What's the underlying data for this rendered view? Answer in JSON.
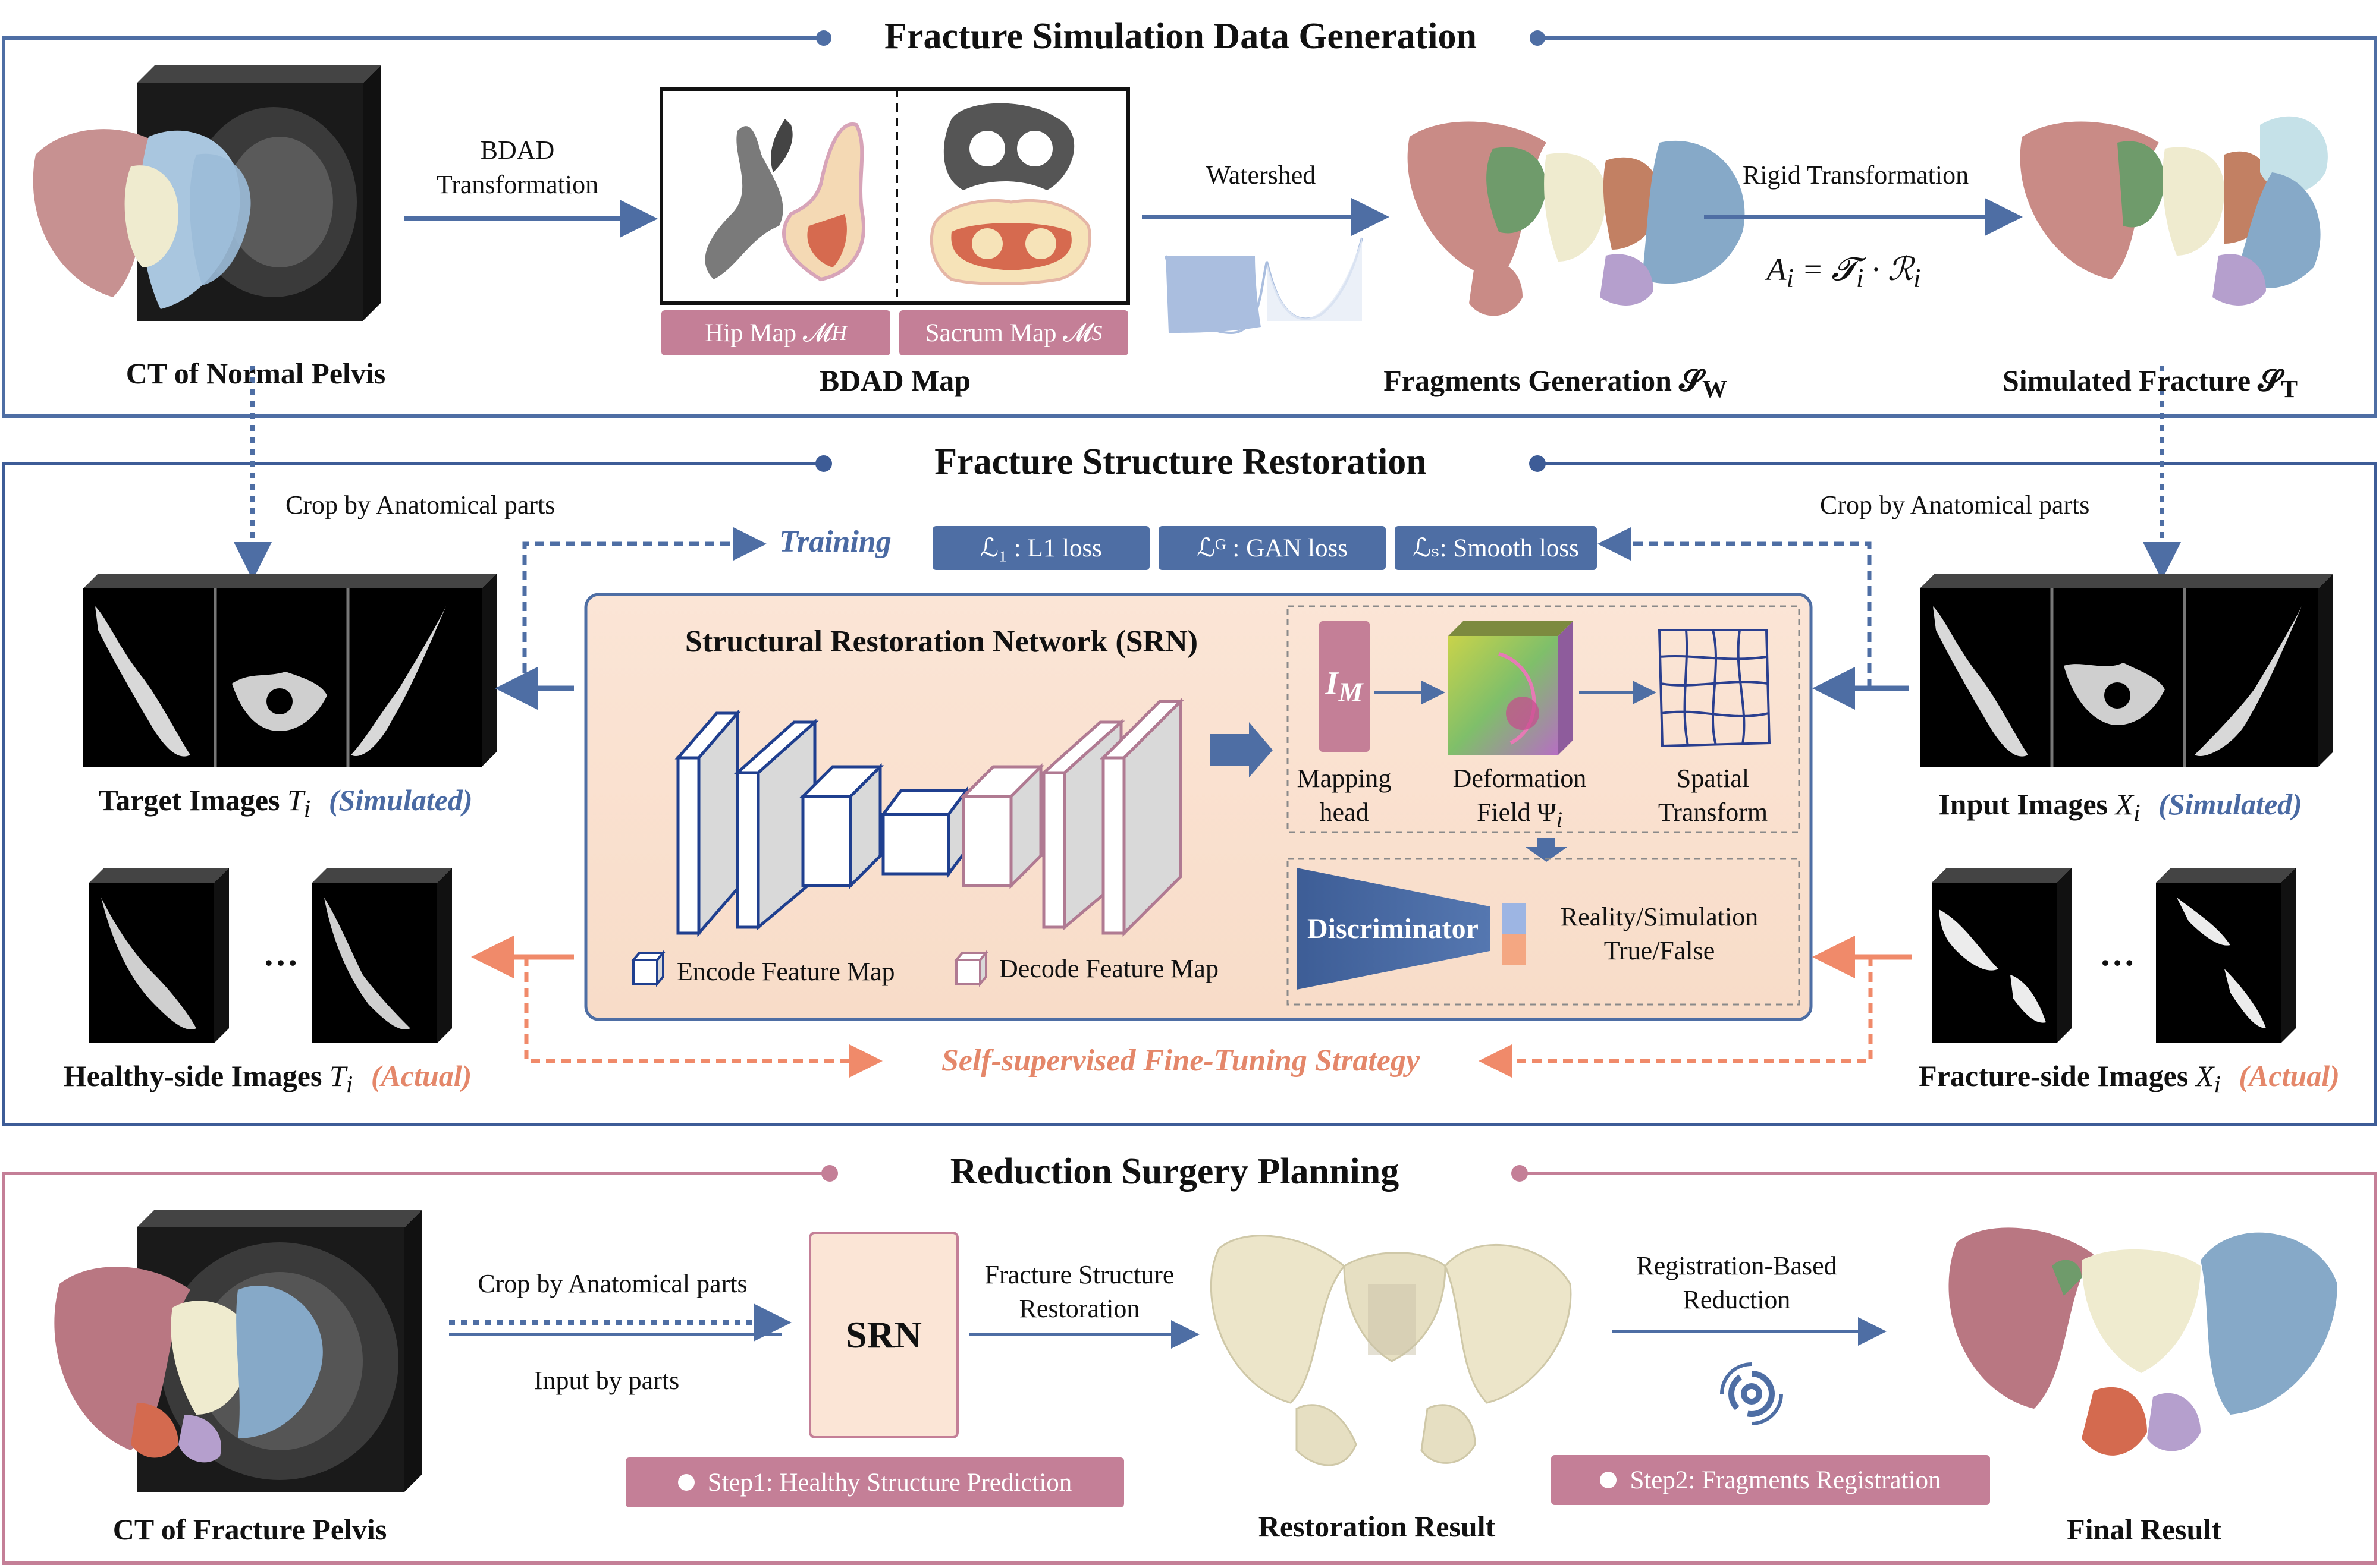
{
  "colors": {
    "blue": "#4e6ea4",
    "rose": "#c47f97",
    "orange": "#f08a6a",
    "peach": "#fbe5d6"
  },
  "section1": {
    "title": "Fracture Simulation Data Generation",
    "ct_caption": "CT of Normal Pelvis",
    "bdad_arrow_line1": "BDAD",
    "bdad_arrow_line2": "Transformation",
    "hip_map": "Hip Map 𝓜",
    "hip_sub": "H",
    "sacrum_map": "Sacrum Map 𝓜",
    "sacrum_sub": "S",
    "bdad_caption": "BDAD Map",
    "watershed": "Watershed",
    "fragments_caption": "Fragments Generation 𝓢",
    "fragments_sub": "W",
    "rigid": "Rigid Transformation",
    "formula": "A",
    "formula_rest": " = 𝓣",
    "formula_r": " · ℛ",
    "formula_i": "i",
    "simulated_caption": "Simulated Fracture 𝓢",
    "simulated_sub": "T"
  },
  "section2": {
    "title": "Fracture Structure Restoration",
    "crop_left": "Crop by Anatomical parts",
    "crop_right": "Crop by Anatomical parts",
    "training": "Training",
    "loss1": "ℒ₁ : L1 loss",
    "loss2": "ℒᴳ : GAN loss",
    "loss3": "ℒₛ: Smooth loss",
    "srn_title": "Structural Restoration Network (SRN)",
    "mapping_symbol": "I",
    "mapping_sub": "M",
    "mapping_label1": "Mapping",
    "mapping_label2": "head",
    "deform_label1": "Deformation",
    "deform_label2": "Field Ψ",
    "deform_sub": "i",
    "spatial_label1": "Spatial",
    "spatial_label2": "Transform",
    "discriminator": "Discriminator",
    "disc_out1": "Reality/Simulation",
    "disc_out2": "True/False",
    "encode_legend": "Encode Feature Map",
    "decode_legend": "Decode Feature Map",
    "target_caption": "Target Images ",
    "target_var": "T",
    "target_sub": "i",
    "simulated_tag": "(Simulated)",
    "input_caption": "Input Images ",
    "input_var": "X",
    "input_sub": "i",
    "healthy_caption": "Healthy-side Images ",
    "healthy_var": "T",
    "healthy_sub": "i",
    "actual_tag": "(Actual)",
    "fracture_caption": "Fracture-side Images ",
    "fracture_var": "X",
    "fracture_sub": "i",
    "self_supervised": "Self-supervised Fine-Tuning Strategy",
    "ellipsis": "…"
  },
  "section3": {
    "title": "Reduction Surgery Planning",
    "ct_caption": "CT of Fracture Pelvis",
    "crop": "Crop by Anatomical parts",
    "input_by_parts": "Input by parts",
    "srn": "SRN",
    "restoration_line1": "Fracture Structure",
    "restoration_line2": "Restoration",
    "step1": "Step1: Healthy Structure Prediction",
    "restoration_caption": "Restoration Result",
    "registration_line1": "Registration-Based",
    "registration_line2": "Reduction",
    "step2": "Step2: Fragments Registration",
    "final_caption": "Final Result"
  }
}
